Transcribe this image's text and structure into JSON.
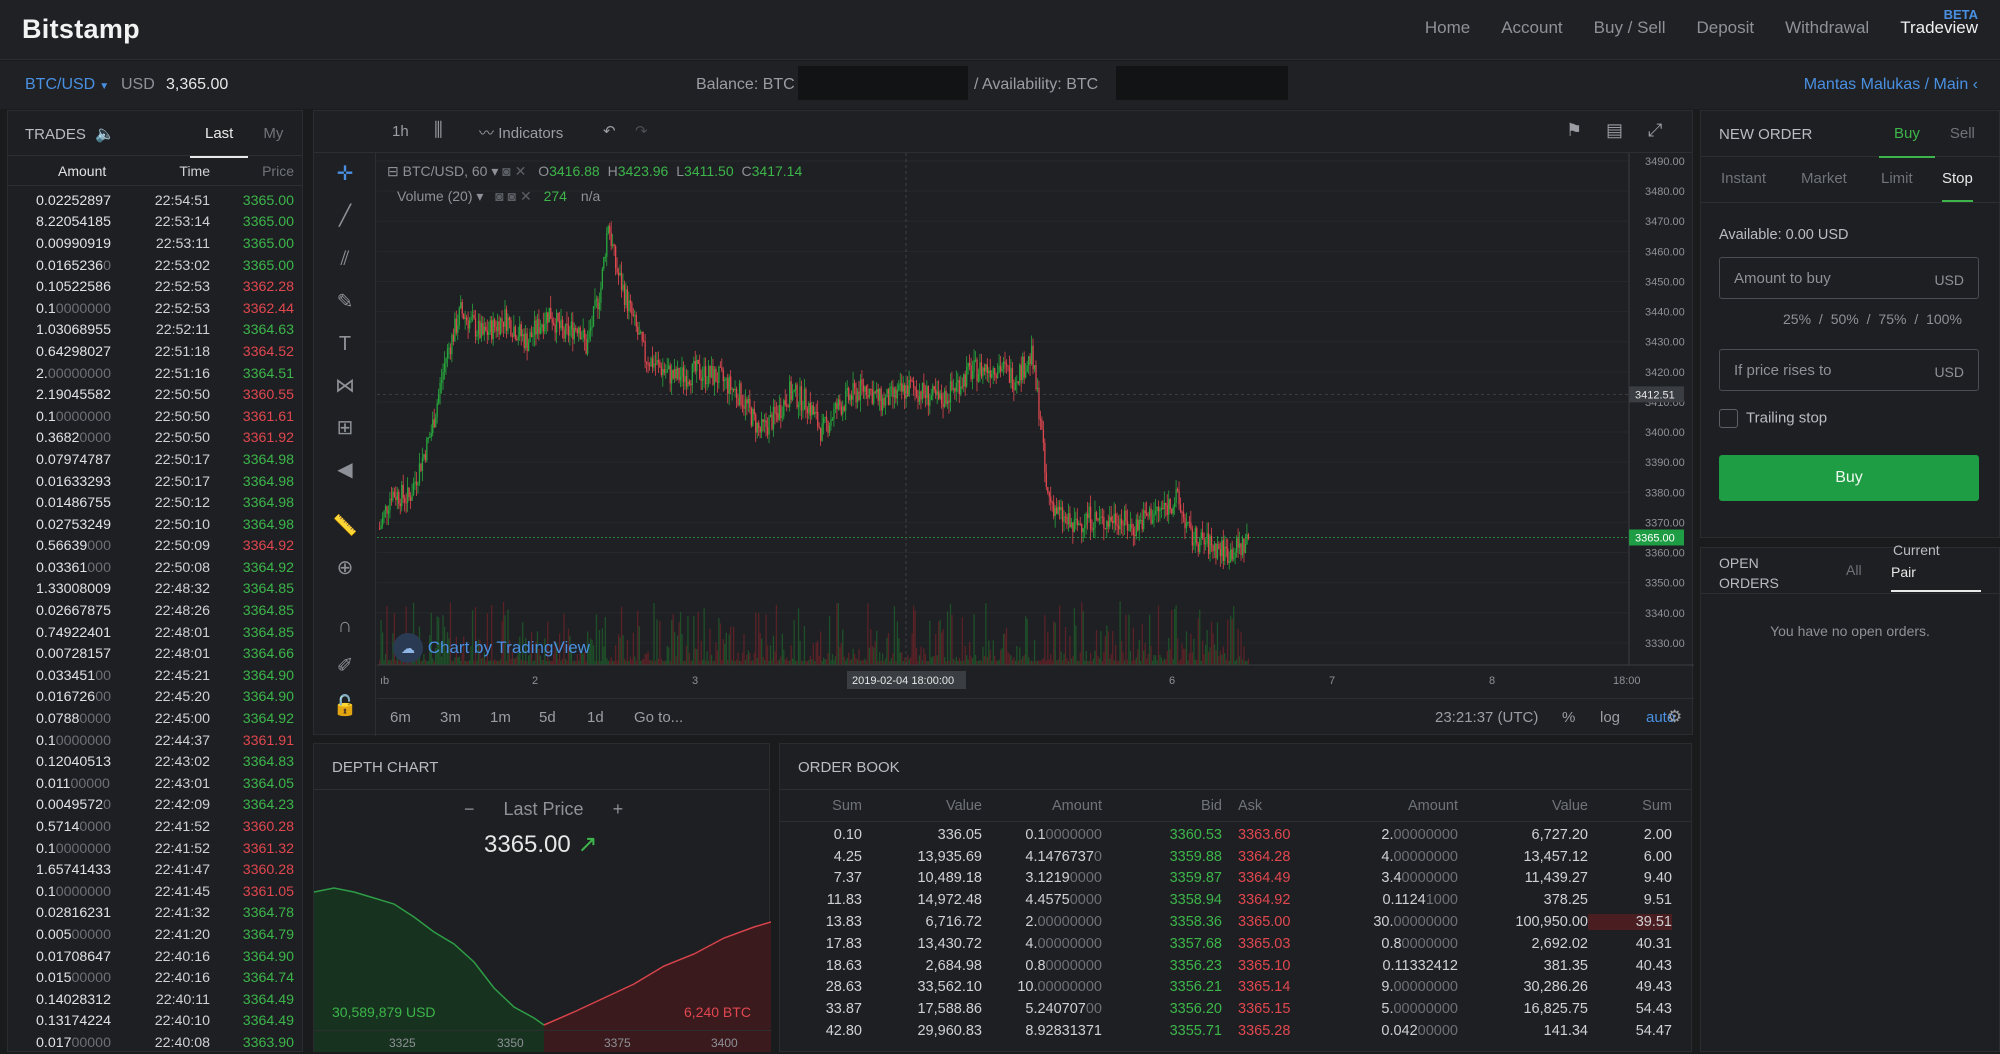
{
  "header": {
    "logo": "Bitstamp",
    "nav": [
      "Home",
      "Account",
      "Buy / Sell",
      "Deposit",
      "Withdrawal",
      "Tradeview"
    ],
    "beta": "BETA"
  },
  "subbar": {
    "pair": "BTC/USD",
    "currency": "USD",
    "last_price": "3,365.00",
    "balance_label": "Balance:  BTC",
    "availability_label": "/   Availability:  BTC",
    "user": "Mantas Malukas / Main"
  },
  "trades": {
    "title": "TRADES",
    "tabs": [
      "Last",
      "My"
    ],
    "columns": [
      "Amount",
      "Time",
      "Price"
    ],
    "rows": [
      [
        "0.02252897",
        "",
        "22:54:51",
        "3365.00",
        "up"
      ],
      [
        "8.22054185",
        "",
        "22:53:14",
        "3365.00",
        "up"
      ],
      [
        "0.00990919",
        "",
        "22:53:11",
        "3365.00",
        "up"
      ],
      [
        "0.0165236",
        "0",
        "22:53:02",
        "3365.00",
        "up"
      ],
      [
        "0.10522586",
        "",
        "22:52:53",
        "3362.28",
        "dn"
      ],
      [
        "0.1",
        "0000000",
        "22:52:53",
        "3362.44",
        "dn"
      ],
      [
        "1.03068955",
        "",
        "22:52:11",
        "3364.63",
        "up"
      ],
      [
        "0.64298027",
        "",
        "22:51:18",
        "3364.52",
        "dn"
      ],
      [
        "2.",
        "00000000",
        "22:51:16",
        "3364.51",
        "up"
      ],
      [
        "2.19045582",
        "",
        "22:50:50",
        "3360.55",
        "dn"
      ],
      [
        "0.1",
        "0000000",
        "22:50:50",
        "3361.61",
        "dn"
      ],
      [
        "0.3682",
        "0000",
        "22:50:50",
        "3361.92",
        "dn"
      ],
      [
        "0.07974787",
        "",
        "22:50:17",
        "3364.98",
        "up"
      ],
      [
        "0.01633293",
        "",
        "22:50:17",
        "3364.98",
        "up"
      ],
      [
        "0.01486755",
        "",
        "22:50:12",
        "3364.98",
        "up"
      ],
      [
        "0.02753249",
        "",
        "22:50:10",
        "3364.98",
        "up"
      ],
      [
        "0.56639",
        "000",
        "22:50:09",
        "3364.92",
        "dn"
      ],
      [
        "0.03361",
        "000",
        "22:50:08",
        "3364.92",
        "up"
      ],
      [
        "1.33008009",
        "",
        "22:48:32",
        "3364.85",
        "up"
      ],
      [
        "0.02667875",
        "",
        "22:48:26",
        "3364.85",
        "up"
      ],
      [
        "0.74922401",
        "",
        "22:48:01",
        "3364.85",
        "up"
      ],
      [
        "0.00728157",
        "",
        "22:48:01",
        "3364.66",
        "up"
      ],
      [
        "0.033451",
        "00",
        "22:45:21",
        "3364.90",
        "up"
      ],
      [
        "0.016726",
        "00",
        "22:45:20",
        "3364.90",
        "up"
      ],
      [
        "0.0788",
        "0000",
        "22:45:00",
        "3364.92",
        "up"
      ],
      [
        "0.1",
        "0000000",
        "22:44:37",
        "3361.91",
        "dn"
      ],
      [
        "0.12040513",
        "",
        "22:43:02",
        "3364.83",
        "up"
      ],
      [
        "0.011",
        "00000",
        "22:43:01",
        "3364.05",
        "up"
      ],
      [
        "0.0049572",
        "0",
        "22:42:09",
        "3364.23",
        "up"
      ],
      [
        "0.5714",
        "0000",
        "22:41:52",
        "3360.28",
        "dn"
      ],
      [
        "0.1",
        "0000000",
        "22:41:52",
        "3361.32",
        "dn"
      ],
      [
        "1.65741433",
        "",
        "22:41:47",
        "3360.28",
        "dn"
      ],
      [
        "0.1",
        "0000000",
        "22:41:45",
        "3361.05",
        "dn"
      ],
      [
        "0.02816231",
        "",
        "22:41:32",
        "3364.78",
        "up"
      ],
      [
        "0.005",
        "00000",
        "22:41:20",
        "3364.79",
        "up"
      ],
      [
        "0.01708647",
        "",
        "22:40:16",
        "3364.90",
        "up"
      ],
      [
        "0.015",
        "00000",
        "22:40:16",
        "3364.74",
        "up"
      ],
      [
        "0.14028312",
        "",
        "22:40:11",
        "3364.49",
        "up"
      ],
      [
        "0.13174224",
        "",
        "22:40:10",
        "3364.49",
        "up"
      ],
      [
        "0.017",
        "00000",
        "22:40:08",
        "3363.90",
        "up"
      ]
    ]
  },
  "chart": {
    "interval": "1h",
    "indicators": "Indicators",
    "symbol": "BTC/USD, 60",
    "ohlc": {
      "o": "3416.88",
      "h": "3423.96",
      "l": "3411.50",
      "c": "3417.14"
    },
    "volume_label": "Volume (20)",
    "volume_value": "274",
    "volume_na": "n/a",
    "watermark": "Chart by TradingView",
    "price_ticks": [
      "3490.00",
      "3480.00",
      "3470.00",
      "3460.00",
      "3450.00",
      "3440.00",
      "3430.00",
      "3420.00",
      "3410.00",
      "3400.00",
      "3390.00",
      "3380.00",
      "3370.00",
      "3360.00",
      "3350.00",
      "3340.00",
      "3330.00"
    ],
    "current_price_tag": "3365.00",
    "crosshair_price_tag": "3412.51",
    "date_ticks": [
      "ıb",
      "2",
      "3",
      "4",
      "6",
      "7",
      "8",
      "18:00"
    ],
    "crosshair_date": "2019-02-04 18:00:00",
    "ranges": [
      "6m",
      "3m",
      "1m",
      "5d",
      "1d",
      "Go to..."
    ],
    "time": "23:21:37 (UTC)",
    "percent": "%",
    "log": "log",
    "auto": "auto",
    "colors": {
      "up": "#26a63d",
      "down": "#e0474f"
    }
  },
  "depth": {
    "title": "DEPTH CHART",
    "minus": "−",
    "plus": "+",
    "last_price_label": "Last Price",
    "last_price": "3365.00",
    "bid_total": "30,589,879 USD",
    "ask_total": "6,240 BTC",
    "x_ticks": [
      "3325",
      "3350",
      "3375",
      "3400"
    ]
  },
  "orderbook": {
    "title": "ORDER BOOK",
    "columns": [
      "Sum",
      "Value",
      "Amount",
      "Bid",
      "Ask",
      "Amount",
      "Value",
      "Sum"
    ],
    "rows": [
      [
        "0.10",
        "336.05",
        "0.1",
        "0000000",
        "3360.53",
        "3363.60",
        "2.",
        "00000000",
        "6,727.20",
        "2.00"
      ],
      [
        "4.25",
        "13,935.69",
        "4.1476737",
        "0",
        "3359.88",
        "3364.28",
        "4.",
        "00000000",
        "13,457.12",
        "6.00"
      ],
      [
        "7.37",
        "10,489.18",
        "3.1219",
        "0000",
        "3359.87",
        "3364.49",
        "3.4",
        "0000000",
        "11,439.27",
        "9.40"
      ],
      [
        "11.83",
        "14,972.48",
        "4.4575",
        "0000",
        "3358.94",
        "3364.92",
        "0.1124",
        "1000",
        "378.25",
        "9.51"
      ],
      [
        "13.83",
        "6,716.72",
        "2.",
        "00000000",
        "3358.36",
        "3365.00",
        "30.",
        "00000000",
        "100,950.00",
        "39.51"
      ],
      [
        "17.83",
        "13,430.72",
        "4.",
        "00000000",
        "3357.68",
        "3365.03",
        "0.8",
        "0000000",
        "2,692.02",
        "40.31"
      ],
      [
        "18.63",
        "2,684.98",
        "0.8",
        "0000000",
        "3356.23",
        "3365.10",
        "0.11332412",
        "",
        "381.35",
        "40.43"
      ],
      [
        "28.63",
        "33,562.10",
        "10.",
        "00000000",
        "3356.21",
        "3365.14",
        "9.",
        "00000000",
        "30,286.26",
        "49.43"
      ],
      [
        "33.87",
        "17,588.86",
        "5.240707",
        "00",
        "3356.20",
        "3365.15",
        "5.",
        "00000000",
        "16,825.75",
        "54.43"
      ],
      [
        "42.80",
        "29,960.83",
        "8.92831371",
        "",
        "3355.71",
        "3365.28",
        "0.042",
        "00000",
        "141.34",
        "54.47"
      ]
    ]
  },
  "new_order": {
    "title": "NEW ORDER",
    "side_tabs": [
      "Buy",
      "Sell"
    ],
    "type_tabs": [
      "Instant",
      "Market",
      "Limit",
      "Stop"
    ],
    "available": "Available: 0.00 USD",
    "amount_placeholder": "Amount to buy",
    "amount_unit": "USD",
    "percents": [
      "25%",
      "/",
      "50%",
      "/",
      "75%",
      "/",
      "100%"
    ],
    "price_placeholder": "If price rises to",
    "price_unit": "USD",
    "trailing": "Trailing stop",
    "buy_button": "Buy"
  },
  "open_orders": {
    "title_1": "OPEN",
    "title_2": "ORDERS",
    "tab_all": "All",
    "tab_current": "Current",
    "tab_pair": "Pair",
    "empty": "You have no open orders."
  }
}
